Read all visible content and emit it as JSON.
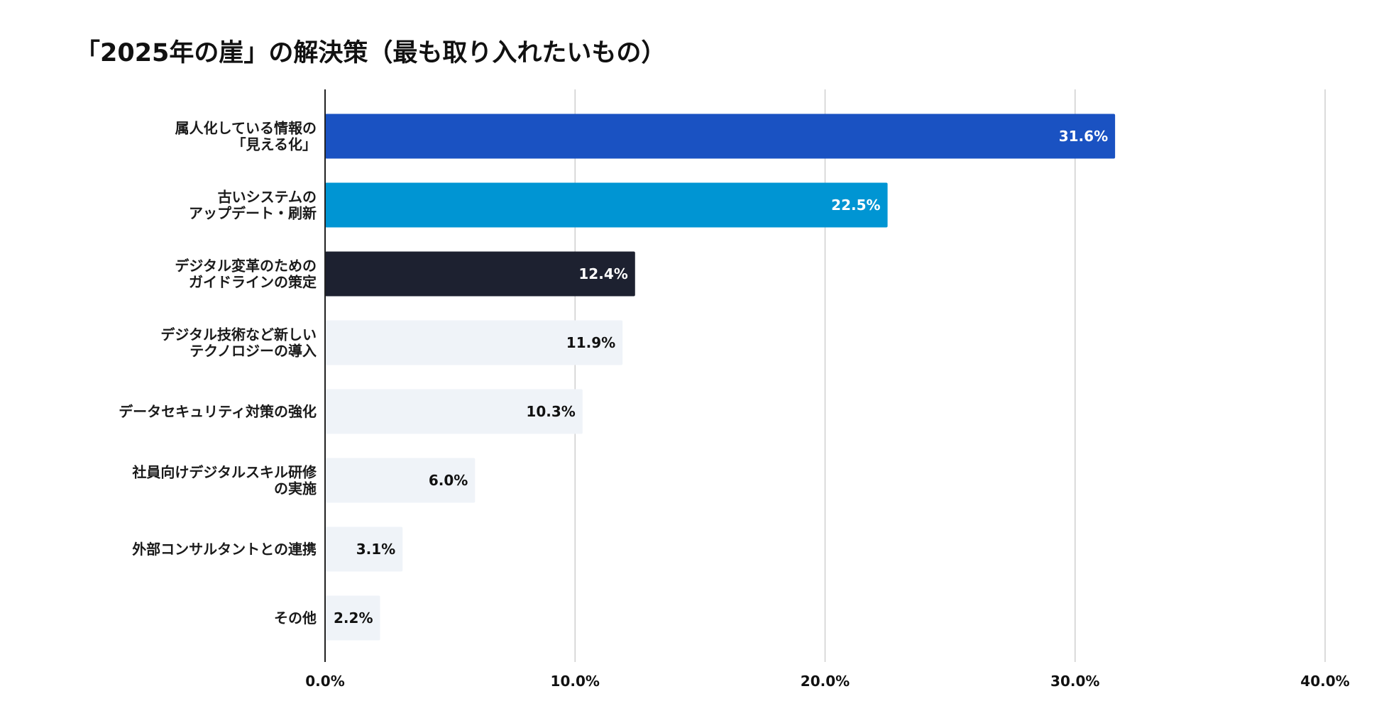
{
  "chart_data": {
    "type": "bar",
    "orientation": "horizontal",
    "title": "「2025年の崖」の解決策（最も取り入れたいもの）",
    "categories": [
      [
        "属人化している情報の",
        "「見える化」"
      ],
      [
        "古いシステムの",
        "アップデート・刷新"
      ],
      [
        "デジタル変革のための",
        "ガイドラインの策定"
      ],
      [
        "デジタル技術など新しい",
        "テクノロジーの導入"
      ],
      [
        "データセキュリティ対策の強化"
      ],
      [
        "社員向けデジタルスキル研修",
        "の実施"
      ],
      [
        "外部コンサルタントとの連携"
      ],
      [
        "その他"
      ]
    ],
    "values": [
      31.6,
      22.5,
      12.4,
      11.9,
      10.3,
      6.0,
      3.1,
      2.2
    ],
    "value_labels": [
      "31.6%",
      "22.5%",
      "12.4%",
      "11.9%",
      "10.3%",
      "6.0%",
      "3.1%",
      "2.2%"
    ],
    "bar_colors": [
      "#1a52c2",
      "#0095d3",
      "#1d2130",
      "#eff3f8",
      "#eff3f8",
      "#eff3f8",
      "#eff3f8",
      "#eff3f8"
    ],
    "label_colors": [
      "#ffffff",
      "#ffffff",
      "#ffffff",
      "#111111",
      "#111111",
      "#111111",
      "#111111",
      "#111111"
    ],
    "xlim": [
      0,
      40
    ],
    "xticks": [
      0,
      10,
      20,
      30,
      40
    ],
    "xtick_labels": [
      "0.0%",
      "10.0%",
      "20.0%",
      "30.0%",
      "40.0%"
    ],
    "grid": true,
    "gridline_color": "#cfcfcf",
    "axis_color": "#222222"
  }
}
